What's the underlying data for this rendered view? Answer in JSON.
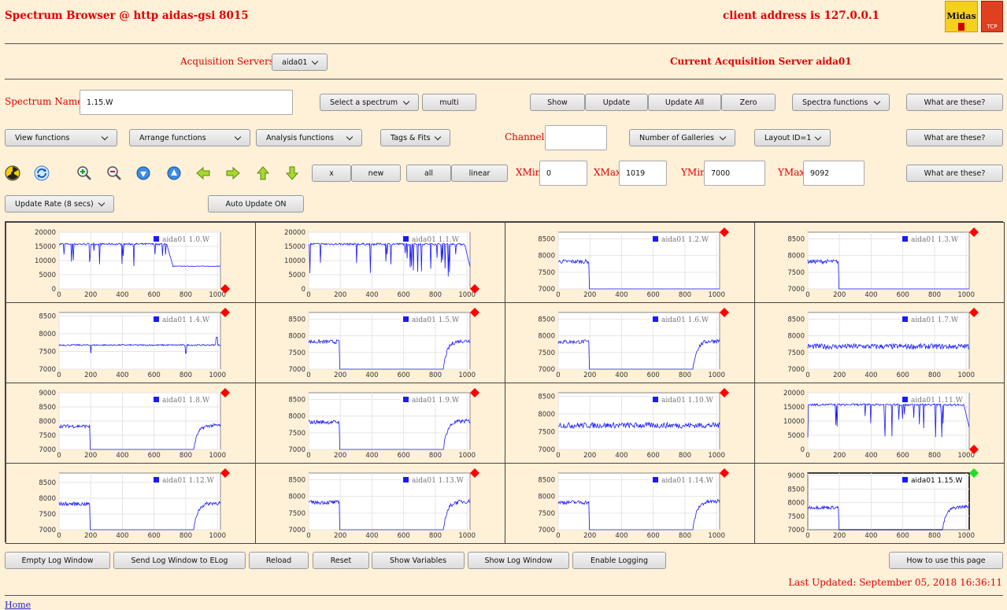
{
  "header": {
    "title": "Spectrum Browser @ http aidas-gsi 8015",
    "client_address": "client address is 127.0.0.1",
    "logo1_text": "Midas",
    "logo2_text": "TCP"
  },
  "acquisition": {
    "label": "Acquisition Servers",
    "selected": "aida01",
    "current": "Current Acquisition Server aida01"
  },
  "row1": {
    "spectrum_name_label": "Spectrum Name:",
    "spectrum_name_value": "1.15.W",
    "select_spectrum": "Select a spectrum",
    "multi": "multi",
    "show": "Show",
    "update": "Update",
    "update_all": "Update All",
    "zero": "Zero",
    "spectra_functions": "Spectra functions",
    "what": "What are these?"
  },
  "row2": {
    "view_functions": "View functions",
    "arrange_functions": "Arrange functions",
    "analysis_functions": "Analysis functions",
    "tags_fits": "Tags & Fits",
    "channel_label": "Channel:",
    "channel_value": "",
    "number_of_galleries": "Number of Galleries",
    "layout": "Layout ID=1",
    "what": "What are these?"
  },
  "row3": {
    "x": "x",
    "new": "new",
    "all": "all",
    "linear": "linear",
    "xmin_label": "XMin",
    "xmin": "0",
    "xmax_label": "XMax",
    "xmax": "1019",
    "ymin_label": "YMin",
    "ymin": "7000",
    "ymax_label": "YMax",
    "ymax": "9092",
    "what": "What are these?"
  },
  "row4": {
    "update_rate": "Update Rate (8 secs)",
    "auto_update": "Auto Update ON"
  },
  "icons": [
    "radiation-icon",
    "refresh-icon",
    "zoom-in-icon",
    "zoom-out-icon",
    "expand-down-icon",
    "expand-up-icon",
    "arrow-left-icon",
    "arrow-right-icon",
    "arrow-up-icon",
    "arrow-down-icon"
  ],
  "colors": {
    "series": "#1a1aff",
    "marker_red": "#ff0000",
    "marker_green": "#22dd22",
    "label_red": "#e00000"
  },
  "chart_data": [
    {
      "type": "line",
      "legend": "aida01 1.0.W",
      "ylim": [
        0,
        20000
      ],
      "yticks": [
        0,
        5000,
        10000,
        15000,
        20000
      ],
      "xlim": [
        0,
        1019
      ],
      "xticks": [
        0,
        200,
        400,
        600,
        800,
        1000
      ],
      "pattern": "A",
      "marker": "red-bottom"
    },
    {
      "type": "line",
      "legend": "aida01 1.1.W",
      "ylim": [
        0,
        20000
      ],
      "yticks": [
        0,
        5000,
        10000,
        15000,
        20000
      ],
      "xlim": [
        0,
        1019
      ],
      "xticks": [
        0,
        200,
        400,
        600,
        800,
        1000
      ],
      "pattern": "B",
      "marker": "red-bottom"
    },
    {
      "type": "line",
      "legend": "aida01 1.2.W",
      "ylim": [
        7000,
        8700
      ],
      "yticks": [
        7000,
        7500,
        8000,
        8500
      ],
      "xlim": [
        0,
        1019
      ],
      "xticks": [
        0,
        200,
        400,
        600,
        800,
        1000
      ],
      "pattern": "step",
      "marker": "red-top"
    },
    {
      "type": "line",
      "legend": "aida01 1.3.W",
      "ylim": [
        7000,
        8700
      ],
      "yticks": [
        7000,
        7500,
        8000,
        8500
      ],
      "xlim": [
        0,
        1019
      ],
      "xticks": [
        0,
        200,
        400,
        600,
        800,
        1000
      ],
      "pattern": "step",
      "marker": "red-top"
    },
    {
      "type": "line",
      "legend": "aida01 1.4.W",
      "ylim": [
        7000,
        8600
      ],
      "yticks": [
        7000,
        7500,
        8000,
        8500
      ],
      "xlim": [
        0,
        1019
      ],
      "xticks": [
        0,
        200,
        400,
        600,
        800,
        1000
      ],
      "pattern": "flat",
      "marker": "red-top"
    },
    {
      "type": "line",
      "legend": "aida01 1.5.W",
      "ylim": [
        7000,
        8700
      ],
      "yticks": [
        7000,
        7500,
        8000,
        8500
      ],
      "xlim": [
        0,
        1019
      ],
      "xticks": [
        0,
        200,
        400,
        600,
        800,
        1000
      ],
      "pattern": "steprise",
      "marker": "red-top"
    },
    {
      "type": "line",
      "legend": "aida01 1.6.W",
      "ylim": [
        7000,
        8700
      ],
      "yticks": [
        7000,
        7500,
        8000,
        8500
      ],
      "xlim": [
        0,
        1019
      ],
      "xticks": [
        0,
        200,
        400,
        600,
        800,
        1000
      ],
      "pattern": "steprise",
      "marker": "red-top"
    },
    {
      "type": "line",
      "legend": "aida01 1.7.W",
      "ylim": [
        7000,
        8700
      ],
      "yticks": [
        7000,
        7500,
        8000,
        8500
      ],
      "xlim": [
        0,
        1019
      ],
      "xticks": [
        0,
        200,
        400,
        600,
        800,
        1000
      ],
      "pattern": "flatnoisy",
      "marker": "red-top"
    },
    {
      "type": "line",
      "legend": "aida01 1.8.W",
      "ylim": [
        7000,
        9000
      ],
      "yticks": [
        7000,
        7500,
        8000,
        8500,
        9000
      ],
      "xlim": [
        0,
        1019
      ],
      "xticks": [
        0,
        200,
        400,
        600,
        800,
        1000
      ],
      "pattern": "steprise",
      "marker": "red-top"
    },
    {
      "type": "line",
      "legend": "aida01 1.9.W",
      "ylim": [
        7000,
        8700
      ],
      "yticks": [
        7000,
        7500,
        8000,
        8500
      ],
      "xlim": [
        0,
        1019
      ],
      "xticks": [
        0,
        200,
        400,
        600,
        800,
        1000
      ],
      "pattern": "steprise",
      "marker": "red-top"
    },
    {
      "type": "line",
      "legend": "aida01 1.10.W",
      "ylim": [
        7000,
        8600
      ],
      "yticks": [
        7000,
        7500,
        8000,
        8500
      ],
      "xlim": [
        0,
        1019
      ],
      "xticks": [
        0,
        200,
        400,
        600,
        800,
        1000
      ],
      "pattern": "flatnoisy",
      "marker": "red-top"
    },
    {
      "type": "line",
      "legend": "aida01 1.11.W",
      "ylim": [
        0,
        20000
      ],
      "yticks": [
        0,
        5000,
        10000,
        15000,
        20000
      ],
      "xlim": [
        0,
        1019
      ],
      "xticks": [
        0,
        200,
        400,
        600,
        800,
        1000
      ],
      "pattern": "B",
      "marker": "red-bottom"
    },
    {
      "type": "line",
      "legend": "aida01 1.12.W",
      "ylim": [
        7000,
        8800
      ],
      "yticks": [
        7000,
        7500,
        8000,
        8500
      ],
      "xlim": [
        0,
        1019
      ],
      "xticks": [
        0,
        200,
        400,
        600,
        800,
        1000
      ],
      "pattern": "steprise",
      "marker": "red-top"
    },
    {
      "type": "line",
      "legend": "aida01 1.13.W",
      "ylim": [
        7000,
        8700
      ],
      "yticks": [
        7000,
        7500,
        8000,
        8500
      ],
      "xlim": [
        0,
        1019
      ],
      "xticks": [
        0,
        200,
        400,
        600,
        800,
        1000
      ],
      "pattern": "steprise",
      "marker": "red-top"
    },
    {
      "type": "line",
      "legend": "aida01 1.14.W",
      "ylim": [
        7000,
        8700
      ],
      "yticks": [
        7000,
        7500,
        8000,
        8500
      ],
      "xlim": [
        0,
        1019
      ],
      "xticks": [
        0,
        200,
        400,
        600,
        800,
        1000
      ],
      "pattern": "steprise",
      "marker": "red-top"
    },
    {
      "type": "line",
      "legend": "aida01 1.15.W",
      "ylim": [
        7000,
        9092
      ],
      "yticks": [
        7000,
        7500,
        8000,
        8500,
        9000
      ],
      "xlim": [
        0,
        1019
      ],
      "xticks": [
        0,
        200,
        400,
        600,
        800,
        1000
      ],
      "pattern": "steprise",
      "marker": "green-top",
      "selected": true
    }
  ],
  "bottom": {
    "empty_log": "Empty Log Window",
    "send_log": "Send Log Window to ELog",
    "reload": "Reload",
    "reset": "Reset",
    "show_variables": "Show Variables",
    "show_log": "Show Log Window",
    "enable_logging": "Enable Logging",
    "how_to": "How to use this page",
    "last_updated": "Last Updated: September 05, 2018 16:36:11",
    "home": "Home"
  }
}
